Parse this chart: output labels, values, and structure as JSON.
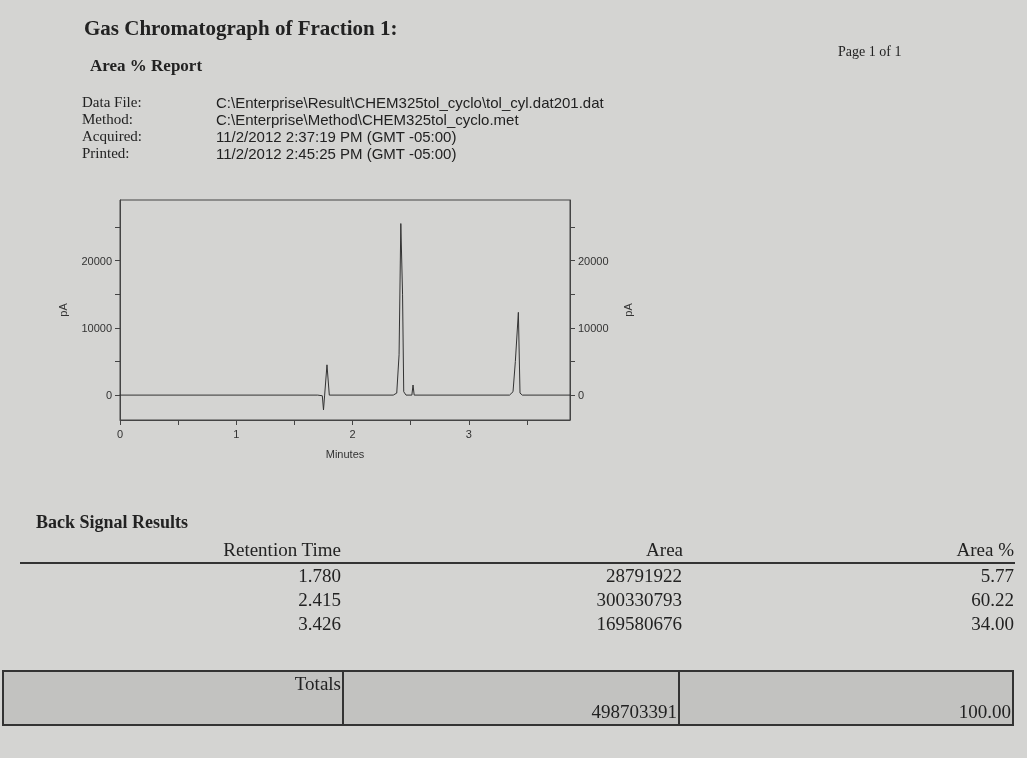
{
  "chart_data": {
    "type": "line",
    "title": "Gas Chromatograph of Fraction 1:",
    "subtitle": "Area % Report",
    "xlabel": "Minutes",
    "ylabel": "pA",
    "y2label": "pA",
    "series": [
      {
        "color": "#333333",
        "x": [
          0,
          1.7,
          1.74,
          1.75,
          1.76,
          1.78,
          1.8,
          2.35,
          2.38,
          2.4,
          2.415,
          2.43,
          2.44,
          2.46,
          2.51,
          2.52,
          2.53,
          3.35,
          3.38,
          3.4,
          3.426,
          3.44,
          3.46,
          3.87
        ],
        "values": [
          0,
          0,
          -100,
          -2200,
          0,
          4500,
          0,
          0,
          300,
          6000,
          25500,
          15000,
          500,
          0,
          0,
          1500,
          0,
          0,
          500,
          5000,
          12300,
          300,
          0,
          0
        ]
      }
    ],
    "xlim": [
      0,
      3.87
    ],
    "xticks": [
      0,
      {
        "value": 0.5,
        "label": null
      },
      1,
      {
        "value": 1.5,
        "label": null
      },
      2,
      {
        "value": 2.5,
        "label": null
      },
      3,
      {
        "value": 3.5,
        "label": null
      }
    ],
    "ylim": [
      -3700,
      29000
    ],
    "yticks": [
      0,
      {
        "value": 5000,
        "label": null
      },
      10000,
      {
        "value": 15000,
        "label": null
      },
      20000,
      {
        "value": 25000,
        "label": null
      }
    ],
    "y2lim": [
      -3700,
      29000
    ],
    "y2ticks": [
      0,
      {
        "value": 5000,
        "label": null
      },
      10000,
      {
        "value": 15000,
        "label": null
      },
      20000,
      {
        "value": 25000,
        "label": null
      }
    ],
    "grid": false,
    "marker": "none",
    "line_style": "solid",
    "annotations": [
      "Page 1 of 1",
      "Data File:",
      "C:\\Enterprise\\Result\\CHEM325tol_cyclo\\tol_cyl.dat201.dat",
      "Method:",
      "C:\\Enterprise\\Method\\CHEM325tol_cyclo.met",
      "Acquired:",
      "11/2/2012 2:37:19 PM (GMT -05:00)",
      "Printed:",
      "11/2/2012 2:45:25 PM (GMT -05:00)",
      "Back Signal Results",
      "Retention Time",
      "Area",
      "Area %",
      "1.780",
      "28791922",
      "5.77",
      "2.415",
      "300330793",
      "60.22",
      "3.426",
      "169580676",
      "34.00",
      "Totals",
      "498703391",
      "100.00"
    ]
  }
}
